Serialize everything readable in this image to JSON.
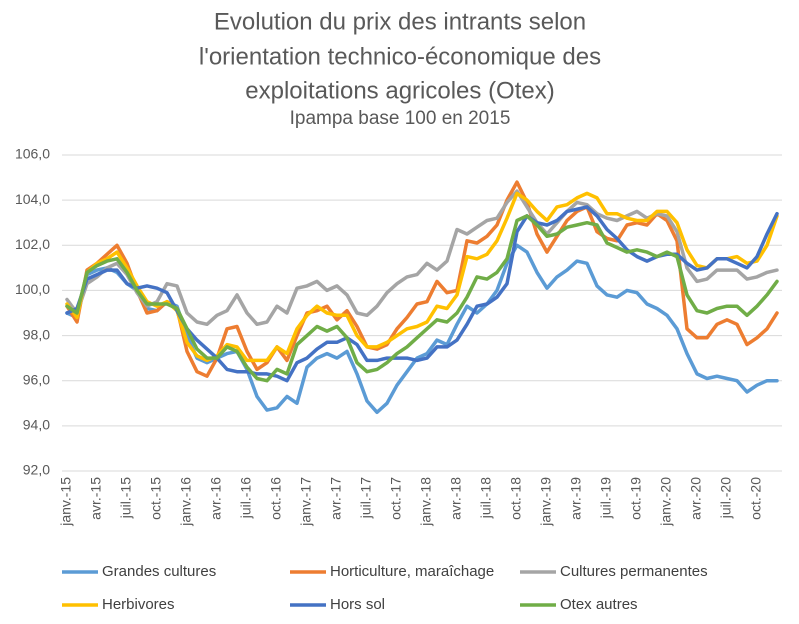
{
  "chart_data": {
    "type": "line",
    "title": [
      "Evolution du prix des intrants selon",
      "l'orientation technico-économique des",
      "exploitations agricoles (Otex)"
    ],
    "subtitle": "Ipampa base 100 en 2015",
    "categories": [
      "janv.-15",
      null,
      null,
      "avr.-15",
      null,
      null,
      "juil.-15",
      null,
      null,
      "oct.-15",
      null,
      null,
      "janv.-16",
      null,
      null,
      "avr.-16",
      null,
      null,
      "juil.-16",
      null,
      null,
      "oct.-16",
      null,
      null,
      "janv.-17",
      null,
      null,
      "avr.-17",
      null,
      null,
      "juil.-17",
      null,
      null,
      "oct.-17",
      null,
      null,
      "janv.-18",
      null,
      null,
      "avr.-18",
      null,
      null,
      "juil.-18",
      null,
      null,
      "oct.-18",
      null,
      null,
      "janv.-19",
      null,
      null,
      "avr.-19",
      null,
      null,
      "juil.-19",
      null,
      null,
      "oct.-19",
      null,
      null,
      "janv.-20",
      null,
      null,
      "avr.-20",
      null,
      null,
      "juil.-20",
      null,
      null,
      "oct.-20",
      null,
      null
    ],
    "series": [
      {
        "name": "Grandes cultures",
        "color": "#5b9bd5",
        "values": [
          99.0,
          98.8,
          100.7,
          100.9,
          101.0,
          100.8,
          100.3,
          100.0,
          99.2,
          99.1,
          99.5,
          99.3,
          98.0,
          97.0,
          96.8,
          97.0,
          97.2,
          97.3,
          96.5,
          95.3,
          94.7,
          94.8,
          95.3,
          95.0,
          96.6,
          97.0,
          97.2,
          97.0,
          97.3,
          96.3,
          95.1,
          94.6,
          95.0,
          95.8,
          96.4,
          97.0,
          97.2,
          97.8,
          97.6,
          98.5,
          99.3,
          99.0,
          99.4,
          100.0,
          101.2,
          102.0,
          101.7,
          100.8,
          100.1,
          100.6,
          100.9,
          101.3,
          101.2,
          100.2,
          99.8,
          99.7,
          100.0,
          99.9,
          99.4,
          99.2,
          98.9,
          98.3,
          97.2,
          96.3,
          96.1,
          96.2,
          96.1,
          96.0,
          95.5,
          95.8,
          96.0,
          96.0
        ]
      },
      {
        "name": "Horticulture, maraîchage",
        "color": "#ed7d31",
        "values": [
          99.3,
          98.6,
          100.9,
          101.2,
          101.6,
          102.0,
          101.2,
          100.0,
          99.0,
          99.1,
          99.5,
          99.2,
          97.3,
          96.4,
          96.2,
          97.0,
          98.3,
          98.4,
          97.3,
          96.5,
          96.8,
          97.5,
          96.9,
          98.0,
          99.0,
          99.1,
          99.3,
          98.7,
          99.1,
          98.4,
          97.5,
          97.4,
          97.6,
          98.3,
          98.8,
          99.4,
          99.5,
          100.4,
          99.9,
          100.0,
          102.2,
          102.1,
          102.4,
          102.9,
          104.0,
          104.8,
          103.9,
          102.5,
          101.7,
          102.4,
          103.1,
          103.5,
          103.7,
          102.6,
          102.3,
          102.2,
          102.9,
          103.0,
          102.9,
          103.4,
          103.1,
          102.2,
          98.3,
          97.9,
          97.9,
          98.5,
          98.7,
          98.5,
          97.6,
          97.9,
          98.3,
          99.0
        ]
      },
      {
        "name": "Cultures permanentes",
        "color": "#a5a5a5",
        "values": [
          99.6,
          99.0,
          100.3,
          100.6,
          101.0,
          101.2,
          100.7,
          99.9,
          99.3,
          99.5,
          100.3,
          100.2,
          99.0,
          98.6,
          98.5,
          98.9,
          99.1,
          99.8,
          99.0,
          98.5,
          98.6,
          99.3,
          99.0,
          100.1,
          100.2,
          100.4,
          100.0,
          100.2,
          99.8,
          99.0,
          98.9,
          99.3,
          99.9,
          100.3,
          100.6,
          100.7,
          101.2,
          100.9,
          101.3,
          102.7,
          102.5,
          102.8,
          103.1,
          103.2,
          103.9,
          104.4,
          103.7,
          103.0,
          102.5,
          103.0,
          103.5,
          103.9,
          103.8,
          103.4,
          103.2,
          103.1,
          103.3,
          103.5,
          103.2,
          103.4,
          103.3,
          102.6,
          101.0,
          100.4,
          100.5,
          100.9,
          100.9,
          100.9,
          100.5,
          100.6,
          100.8,
          100.9
        ]
      },
      {
        "name": "Herbivores",
        "color": "#ffc000",
        "values": [
          99.4,
          98.8,
          100.8,
          101.2,
          101.4,
          101.7,
          101.0,
          100.2,
          99.5,
          99.3,
          99.5,
          99.1,
          97.7,
          97.1,
          96.9,
          97.1,
          97.6,
          97.5,
          96.9,
          96.9,
          96.9,
          97.5,
          97.2,
          98.3,
          98.9,
          99.3,
          99.0,
          98.9,
          98.9,
          98.0,
          97.5,
          97.5,
          97.7,
          98.0,
          98.3,
          98.4,
          98.6,
          99.3,
          99.2,
          99.8,
          101.5,
          101.4,
          101.6,
          102.2,
          103.2,
          104.3,
          104.0,
          103.5,
          103.1,
          103.7,
          103.8,
          104.1,
          104.3,
          104.1,
          103.4,
          103.4,
          103.2,
          103.1,
          103.1,
          103.5,
          103.5,
          103.0,
          101.8,
          101.1,
          101.0,
          101.4,
          101.4,
          101.5,
          101.2,
          101.3,
          102.0,
          103.3
        ]
      },
      {
        "name": "Hors sol",
        "color": "#4472c4",
        "values": [
          99.0,
          99.2,
          100.5,
          100.7,
          100.9,
          100.9,
          100.3,
          100.1,
          100.2,
          100.1,
          99.9,
          99.1,
          98.3,
          97.8,
          97.4,
          97.0,
          96.5,
          96.4,
          96.4,
          96.3,
          96.3,
          96.2,
          96.0,
          96.8,
          97.0,
          97.4,
          97.7,
          97.7,
          97.9,
          97.6,
          96.9,
          96.9,
          97.0,
          97.0,
          97.0,
          96.9,
          97.0,
          97.5,
          97.5,
          97.8,
          98.5,
          99.3,
          99.4,
          99.7,
          100.3,
          102.6,
          103.3,
          103.0,
          102.9,
          103.1,
          103.5,
          103.6,
          103.7,
          103.3,
          102.7,
          102.3,
          101.8,
          101.5,
          101.3,
          101.5,
          101.6,
          101.6,
          101.2,
          100.9,
          101.0,
          101.4,
          101.4,
          101.2,
          101.0,
          101.5,
          102.5,
          103.4
        ]
      },
      {
        "name": "Otex autres",
        "color": "#70ad47",
        "values": [
          99.3,
          99.0,
          100.8,
          101.1,
          101.3,
          101.4,
          100.8,
          100.0,
          99.4,
          99.4,
          99.4,
          99.2,
          98.3,
          97.4,
          97.0,
          97.0,
          97.5,
          97.3,
          96.6,
          96.1,
          96.0,
          96.5,
          96.3,
          97.6,
          98.0,
          98.4,
          98.2,
          98.4,
          97.9,
          96.8,
          96.4,
          96.5,
          96.8,
          97.2,
          97.5,
          97.9,
          98.3,
          98.7,
          98.6,
          99.0,
          99.7,
          100.6,
          100.5,
          100.8,
          101.4,
          103.1,
          103.3,
          102.9,
          102.4,
          102.5,
          102.8,
          102.9,
          103.0,
          102.9,
          102.1,
          101.9,
          101.7,
          101.8,
          101.7,
          101.5,
          101.7,
          101.5,
          99.8,
          99.1,
          99.0,
          99.2,
          99.3,
          99.3,
          98.9,
          99.3,
          99.8,
          100.4
        ]
      }
    ],
    "ylim": [
      92,
      106
    ],
    "yticks": [
      {
        "value": 92,
        "label": "92,0"
      },
      {
        "value": 94,
        "label": "94,0"
      },
      {
        "value": 96,
        "label": "96,0"
      },
      {
        "value": 98,
        "label": "98,0"
      },
      {
        "value": 100,
        "label": "100,0"
      },
      {
        "value": 102,
        "label": "102,0"
      },
      {
        "value": 104,
        "label": "104,0"
      },
      {
        "value": 106,
        "label": "106,0"
      }
    ],
    "grid": true,
    "legend": "bottom"
  }
}
